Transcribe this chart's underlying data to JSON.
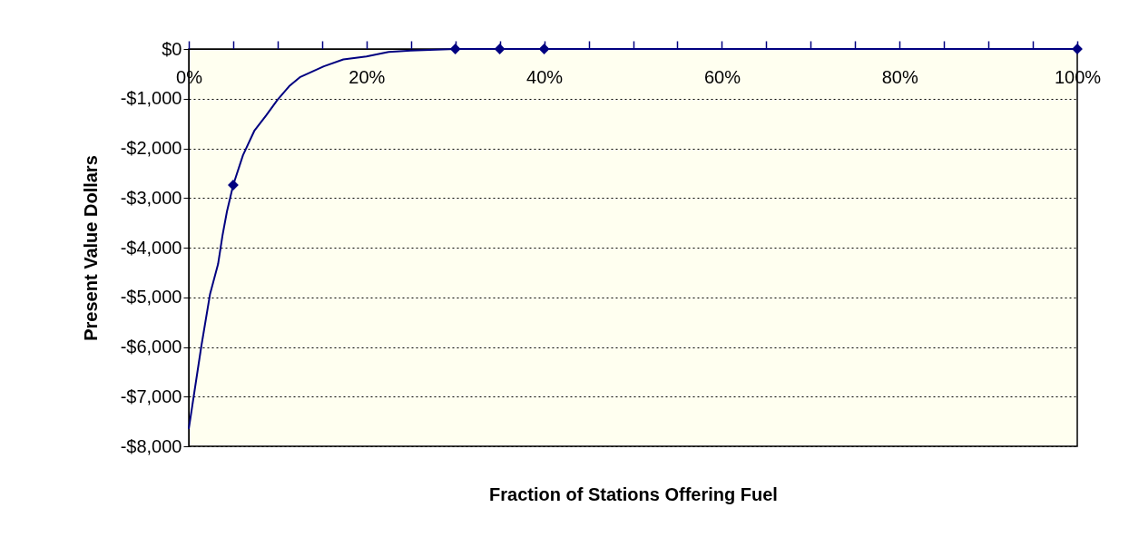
{
  "chart_data": {
    "type": "line",
    "xlabel": "Fraction of Stations Offering Fuel",
    "ylabel": "Present Value Dollars",
    "xlim": [
      0,
      100
    ],
    "xticks": [
      {
        "value": 0,
        "label": "0%"
      },
      {
        "value": 5,
        "label": null
      },
      {
        "value": 10,
        "label": null
      },
      {
        "value": 15,
        "label": null
      },
      {
        "value": 20,
        "label": "20%"
      },
      {
        "value": 25,
        "label": null
      },
      {
        "value": 30,
        "label": null
      },
      {
        "value": 35,
        "label": null
      },
      {
        "value": 40,
        "label": "40%"
      },
      {
        "value": 45,
        "label": null
      },
      {
        "value": 50,
        "label": null
      },
      {
        "value": 55,
        "label": null
      },
      {
        "value": 60,
        "label": "60%"
      },
      {
        "value": 65,
        "label": null
      },
      {
        "value": 70,
        "label": null
      },
      {
        "value": 75,
        "label": null
      },
      {
        "value": 80,
        "label": "80%"
      },
      {
        "value": 85,
        "label": null
      },
      {
        "value": 90,
        "label": null
      },
      {
        "value": 95,
        "label": null
      },
      {
        "value": 100,
        "label": "100%"
      }
    ],
    "ylim": [
      -8000,
      0
    ],
    "yticks": [
      {
        "value": 0,
        "label": "$0"
      },
      {
        "value": -1000,
        "label": "-$1,000"
      },
      {
        "value": -2000,
        "label": "-$2,000"
      },
      {
        "value": -3000,
        "label": "-$3,000"
      },
      {
        "value": -4000,
        "label": "-$4,000"
      },
      {
        "value": -5000,
        "label": "-$5,000"
      },
      {
        "value": -6000,
        "label": "-$6,000"
      },
      {
        "value": -7000,
        "label": "-$7,000"
      },
      {
        "value": -8000,
        "label": "-$8,000"
      }
    ],
    "grid": "y",
    "line_style": "solid",
    "series": [
      {
        "type": "line",
        "marker": "none",
        "color": "#000080",
        "x": [
          0,
          1.4,
          2.4,
          3.3,
          3.8,
          4.3,
          5,
          6.1,
          7.4,
          8.7,
          10,
          11.3,
          12.5,
          15.2,
          17.4,
          20,
          22.5,
          25,
          30,
          35,
          40,
          100
        ],
        "values": [
          -7650,
          -6000,
          -4930,
          -4330,
          -3750,
          -3270,
          -2740,
          -2140,
          -1640,
          -1340,
          -1020,
          -750,
          -570,
          -350,
          -210,
          -150,
          -60,
          -30,
          0,
          0,
          0,
          0
        ]
      },
      {
        "type": "scatter",
        "marker": "diamond",
        "color": "#000080",
        "x": [
          5,
          30,
          35,
          40,
          100
        ],
        "values": [
          -2740,
          0,
          0,
          0,
          0
        ]
      }
    ]
  }
}
